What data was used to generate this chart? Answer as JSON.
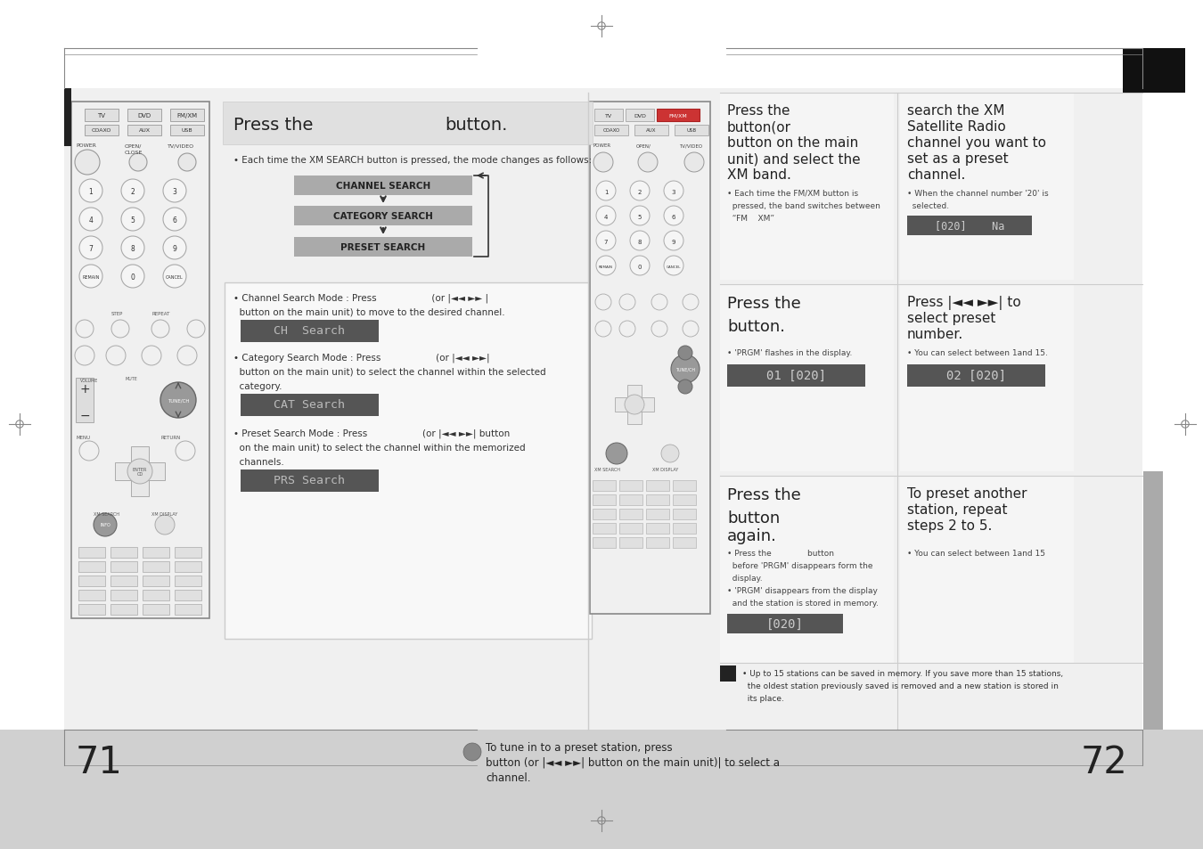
{
  "bg_color": "#ffffff",
  "footer_gray": "#d0d0d0",
  "content_gray": "#f0f0f0",
  "panel_gray": "#e8e8e8",
  "search_box_gray": "#aaaaaa",
  "display_dark": "#555555",
  "display_text": "#cccccc",
  "sidebar_gray": "#999999",
  "black_sq": "#111111",
  "dark_bar": "#333333",
  "page_left": "71",
  "page_right": "72",
  "footer_line1": "To tune in to a preset station, press",
  "footer_line2": "button (or |◄◄ ►► button on the main unit)| to select a",
  "footer_line3": "channel."
}
